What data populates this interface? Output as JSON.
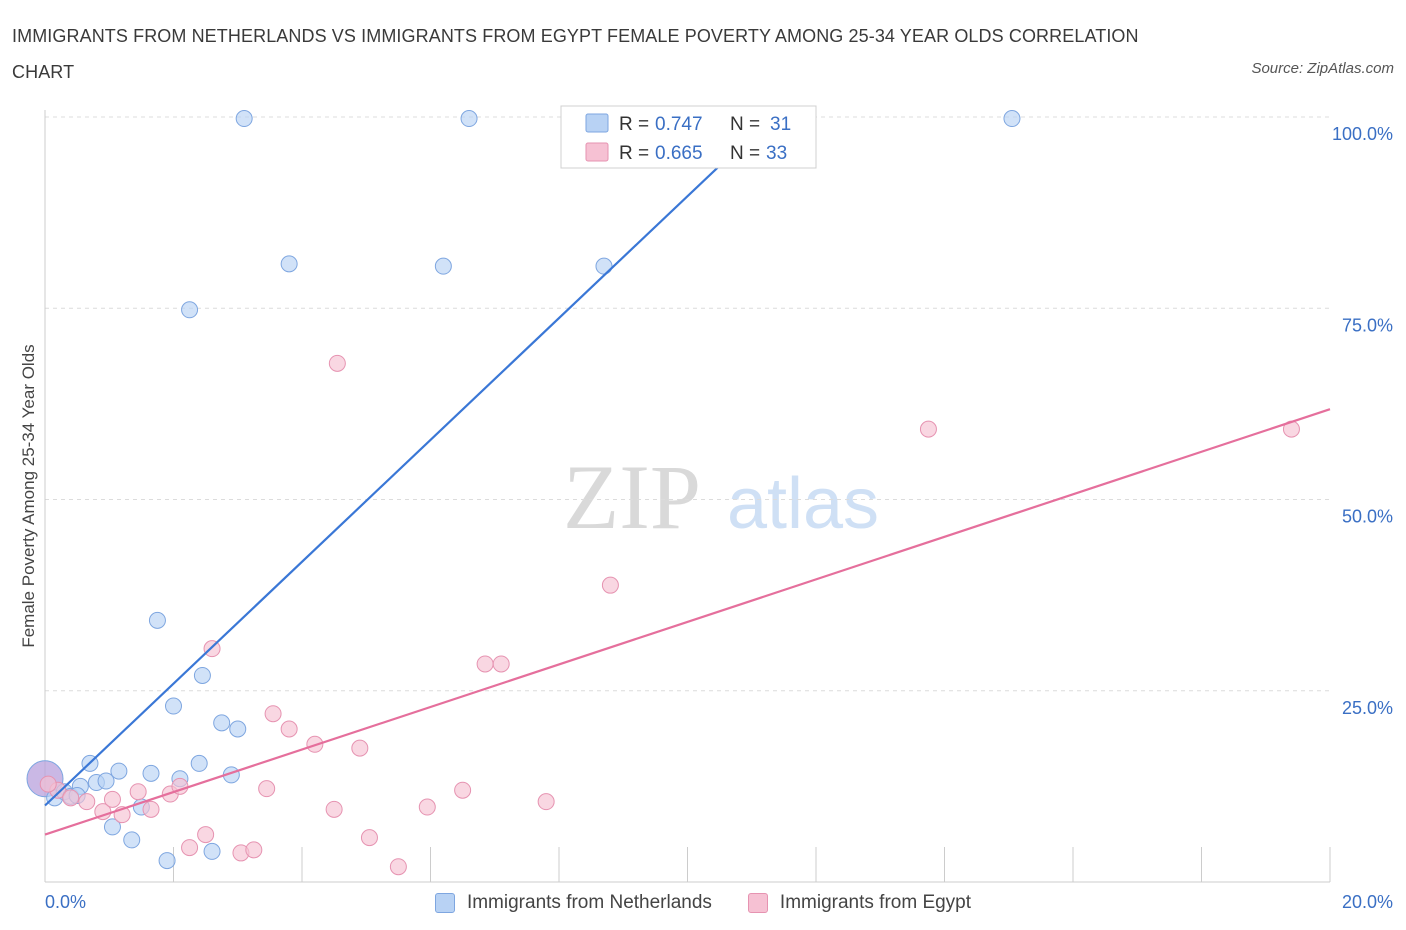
{
  "title": "IMMIGRANTS FROM NETHERLANDS VS IMMIGRANTS FROM EGYPT FEMALE POVERTY AMONG 25-34 YEAR OLDS CORRELATION CHART",
  "source": "Source: ZipAtlas.com",
  "watermark": {
    "zip": "ZIP",
    "atlas": "atlas"
  },
  "colors": {
    "blue": "#3a77d6",
    "blue_fill": "#b8d2f4",
    "pink": "#e56f9c",
    "pink_fill": "#f6c1d3",
    "value_text": "#3a6fc4",
    "grid": "#dcdcdc"
  },
  "chart_data": {
    "type": "scatter",
    "title": "IMMIGRANTS FROM NETHERLANDS VS IMMIGRANTS FROM EGYPT FEMALE POVERTY AMONG 25-34 YEAR OLDS CORRELATION CHART",
    "xlabel": "",
    "ylabel": "Female Poverty Among 25-34 Year Olds",
    "xlim": [
      0,
      20
    ],
    "ylim": [
      0,
      100
    ],
    "x_ticks": [
      {
        "value": 0,
        "label": "0.0%"
      },
      {
        "value": 20,
        "label": "20.0%"
      }
    ],
    "y_ticks": [
      {
        "value": 25,
        "label": "25.0%"
      },
      {
        "value": 50,
        "label": "50.0%"
      },
      {
        "value": 75,
        "label": "75.0%"
      },
      {
        "value": 100,
        "label": "100.0%"
      }
    ],
    "stats": [
      {
        "r_label": "R =",
        "r_value": "0.747",
        "n_label": "N =",
        "n_value": "31"
      },
      {
        "r_label": "R =",
        "r_value": "0.665",
        "n_label": "N =",
        "n_value": "33"
      }
    ],
    "series": [
      {
        "name": "Immigrants from Netherlands",
        "trend": {
          "x0": 0,
          "y0": 10.0,
          "x1": 11.3,
          "y1": 100
        },
        "points": [
          [
            0.0,
            13.5,
            "big"
          ],
          [
            0.15,
            11.0
          ],
          [
            0.3,
            11.8
          ],
          [
            0.4,
            11.2
          ],
          [
            0.55,
            12.5
          ],
          [
            0.7,
            15.5
          ],
          [
            0.8,
            13.0
          ],
          [
            0.95,
            13.2
          ],
          [
            1.05,
            7.2
          ],
          [
            1.15,
            14.5
          ],
          [
            1.35,
            5.5
          ],
          [
            1.5,
            9.8
          ],
          [
            1.65,
            14.2
          ],
          [
            1.75,
            34.2
          ],
          [
            1.9,
            2.8
          ],
          [
            2.0,
            23.0
          ],
          [
            2.1,
            13.5
          ],
          [
            2.25,
            74.8
          ],
          [
            2.4,
            15.5
          ],
          [
            2.45,
            27.0
          ],
          [
            2.6,
            4.0
          ],
          [
            2.75,
            20.8
          ],
          [
            2.9,
            14.0
          ],
          [
            3.0,
            20.0
          ],
          [
            3.1,
            99.8
          ],
          [
            3.8,
            80.8
          ],
          [
            6.2,
            80.5
          ],
          [
            6.6,
            99.8
          ],
          [
            8.7,
            80.5
          ],
          [
            15.05,
            99.8
          ],
          [
            0.5,
            11.3
          ]
        ]
      },
      {
        "name": "Immigrants from Egypt",
        "trend": {
          "x0": 0,
          "y0": 6.2,
          "x1": 20,
          "y1": 61.8
        },
        "points": [
          [
            0.2,
            12.0
          ],
          [
            0.4,
            11.0
          ],
          [
            0.65,
            10.5
          ],
          [
            0.9,
            9.2
          ],
          [
            1.05,
            10.8
          ],
          [
            1.2,
            8.8
          ],
          [
            1.45,
            11.8
          ],
          [
            1.65,
            9.5
          ],
          [
            1.95,
            11.5
          ],
          [
            2.1,
            12.5
          ],
          [
            2.25,
            4.5
          ],
          [
            2.5,
            6.2
          ],
          [
            2.6,
            30.5
          ],
          [
            3.05,
            3.8
          ],
          [
            3.25,
            4.2
          ],
          [
            3.45,
            12.2
          ],
          [
            3.55,
            22.0
          ],
          [
            3.8,
            20.0
          ],
          [
            4.2,
            18.0
          ],
          [
            4.5,
            9.5
          ],
          [
            4.55,
            67.8
          ],
          [
            4.9,
            17.5
          ],
          [
            5.05,
            5.8
          ],
          [
            5.5,
            2.0
          ],
          [
            5.95,
            9.8
          ],
          [
            6.5,
            12.0
          ],
          [
            6.85,
            28.5
          ],
          [
            7.1,
            28.5
          ],
          [
            7.8,
            10.5
          ],
          [
            8.8,
            38.8
          ],
          [
            13.75,
            59.2
          ],
          [
            19.4,
            59.2
          ],
          [
            0.05,
            12.8
          ]
        ]
      }
    ]
  }
}
